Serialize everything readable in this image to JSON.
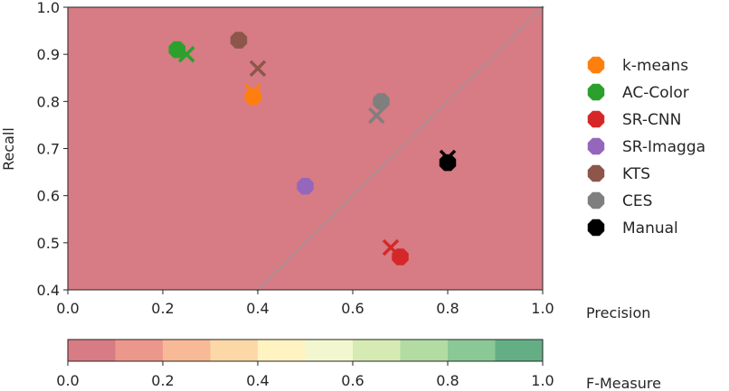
{
  "chart_data": [
    {
      "type": "scatter",
      "title": "",
      "xlabel": "Precision",
      "ylabel": "Recall",
      "xlim": [
        0.0,
        1.0
      ],
      "ylim": [
        0.4,
        1.0
      ],
      "x_ticks": [
        "0.0",
        "0.2",
        "0.4",
        "0.6",
        "0.8",
        "1.0"
      ],
      "y_ticks": [
        "0.4",
        "0.5",
        "0.6",
        "0.7",
        "0.8",
        "0.9",
        "1.0"
      ],
      "background": "F-Measure contour bands (0.1 steps)",
      "diagonal": "precision = recall reference line (dotted)",
      "legend_position": "right",
      "marker_note": "octagon = method result; x = second result of same method",
      "series": [
        {
          "name": "k-means",
          "color": "#ff7f0e",
          "octagon": [
            0.39,
            0.81
          ],
          "cross": [
            0.39,
            0.82
          ]
        },
        {
          "name": "AC-Color",
          "color": "#2ca02c",
          "octagon": [
            0.23,
            0.91
          ],
          "cross": [
            0.25,
            0.9
          ]
        },
        {
          "name": "SR-CNN",
          "color": "#d62728",
          "octagon": [
            0.7,
            0.47
          ],
          "cross": [
            0.68,
            0.49
          ]
        },
        {
          "name": "SR-Imagga",
          "color": "#9467bd",
          "octagon": [
            0.5,
            0.62
          ],
          "cross": null
        },
        {
          "name": "KTS",
          "color": "#8c564b",
          "octagon": [
            0.36,
            0.93
          ],
          "cross": [
            0.4,
            0.87
          ]
        },
        {
          "name": "CES",
          "color": "#7f7f7f",
          "octagon": [
            0.66,
            0.8
          ],
          "cross": [
            0.65,
            0.77
          ]
        },
        {
          "name": "Manual",
          "color": "#000000",
          "octagon": [
            0.8,
            0.67
          ],
          "cross": [
            0.8,
            0.68
          ]
        }
      ]
    },
    {
      "type": "colorbar",
      "label": "F-Measure",
      "range": [
        0.0,
        1.0
      ],
      "ticks": [
        "0.0",
        "0.2",
        "0.4",
        "0.6",
        "0.8",
        "1.0"
      ],
      "bands": [
        {
          "min": 0.0,
          "max": 0.1,
          "color": "#d77b84"
        },
        {
          "min": 0.1,
          "max": 0.2,
          "color": "#ec978c"
        },
        {
          "min": 0.2,
          "max": 0.3,
          "color": "#f8b996"
        },
        {
          "min": 0.3,
          "max": 0.4,
          "color": "#fdd8a7"
        },
        {
          "min": 0.4,
          "max": 0.5,
          "color": "#fff3c2"
        },
        {
          "min": 0.5,
          "max": 0.6,
          "color": "#f2f7cf"
        },
        {
          "min": 0.6,
          "max": 0.7,
          "color": "#d6ebb3"
        },
        {
          "min": 0.7,
          "max": 0.8,
          "color": "#b2dca1"
        },
        {
          "min": 0.8,
          "max": 0.9,
          "color": "#8ac896"
        },
        {
          "min": 0.9,
          "max": 1.0,
          "color": "#64ae86"
        }
      ]
    }
  ]
}
